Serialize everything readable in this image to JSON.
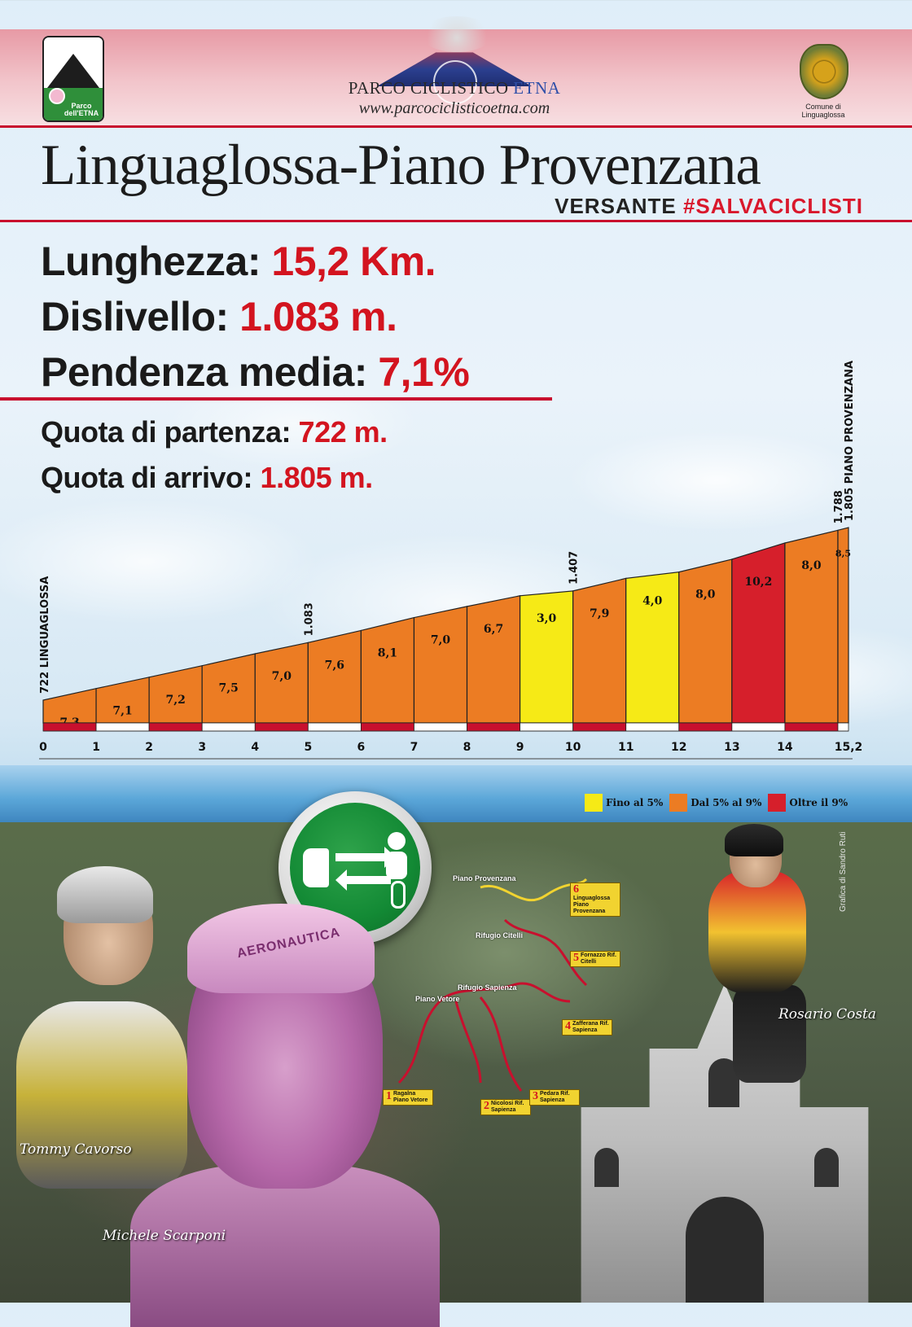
{
  "header": {
    "logo_left_text": "Parco dell'ETNA",
    "logo_center_name": "PARCO CICLISTICO",
    "logo_center_name_accent": "ETNA",
    "logo_center_url": "www.parcociclisticoetna.com",
    "logo_right_text": "Comune di Linguaglossa"
  },
  "title": "Linguaglossa-Piano Provenzana",
  "subtitle_prefix": "VERSANTE",
  "subtitle_tag": "#SALVACICLISTI",
  "stats": {
    "lunghezza_label": "Lunghezza:",
    "lunghezza_value": "15,2 Km.",
    "dislivello_label": "Dislivello:",
    "dislivello_value": "1.083 m.",
    "pendenza_label": "Pendenza media:",
    "pendenza_value": "7,1%",
    "partenza_label": "Quota di partenza:",
    "partenza_value": "722 m.",
    "arrivo_label": "Quota di arrivo:",
    "arrivo_value": "1.805 m."
  },
  "chart_data": {
    "type": "area",
    "title": "",
    "xlabel": "",
    "ylabel": "",
    "x_ticks": [
      "0",
      "1",
      "2",
      "3",
      "4",
      "5",
      "6",
      "7",
      "8",
      "9",
      "10",
      "11",
      "12",
      "13",
      "14",
      "15,2"
    ],
    "segments": [
      {
        "from": 0,
        "to": 1,
        "gradient": "7,3",
        "class": "5-9"
      },
      {
        "from": 1,
        "to": 2,
        "gradient": "7,1",
        "class": "5-9"
      },
      {
        "from": 2,
        "to": 3,
        "gradient": "7,2",
        "class": "5-9"
      },
      {
        "from": 3,
        "to": 4,
        "gradient": "7,5",
        "class": "5-9"
      },
      {
        "from": 4,
        "to": 5,
        "gradient": "7,0",
        "class": "5-9"
      },
      {
        "from": 5,
        "to": 6,
        "gradient": "7,6",
        "class": "5-9"
      },
      {
        "from": 6,
        "to": 7,
        "gradient": "8,1",
        "class": "5-9"
      },
      {
        "from": 7,
        "to": 8,
        "gradient": "7,0",
        "class": "5-9"
      },
      {
        "from": 8,
        "to": 9,
        "gradient": "6,7",
        "class": "5-9"
      },
      {
        "from": 9,
        "to": 10,
        "gradient": "3,0",
        "class": "lt5"
      },
      {
        "from": 10,
        "to": 11,
        "gradient": "7,9",
        "class": "5-9"
      },
      {
        "from": 11,
        "to": 12,
        "gradient": "4,0",
        "class": "lt5"
      },
      {
        "from": 12,
        "to": 13,
        "gradient": "8,0",
        "class": "5-9"
      },
      {
        "from": 13,
        "to": 14,
        "gradient": "10,2",
        "class": "gt9"
      },
      {
        "from": 14,
        "to": 15,
        "gradient": "8,0",
        "class": "5-9"
      },
      {
        "from": 15,
        "to": 15.2,
        "gradient": "8,5",
        "class": "5-9"
      }
    ],
    "elevation_km": [
      0,
      1,
      2,
      3,
      4,
      5,
      6,
      7,
      8,
      9,
      10,
      11,
      12,
      13,
      14,
      15,
      15.2
    ],
    "elevation_m": [
      722,
      795,
      866,
      938,
      1013,
      1083,
      1159,
      1240,
      1310,
      1377,
      1407,
      1486,
      1526,
      1606,
      1708,
      1788,
      1805
    ],
    "elevation_labels": [
      {
        "km": 0,
        "text": "722 LINGUAGLOSSA"
      },
      {
        "km": 5,
        "text": "1.083"
      },
      {
        "km": 10,
        "text": "1.407"
      },
      {
        "km": 15,
        "text": "1.788"
      },
      {
        "km": 15.2,
        "text": "1.805 PIANO PROVENZANA"
      }
    ],
    "colors": {
      "lt5": "#f6ea16",
      "5-9": "#ec7c23",
      "gt9": "#d61f2b"
    },
    "legend": [
      {
        "class": "lt5",
        "label": "Fino al 5%"
      },
      {
        "class": "5-9",
        "label": "Dal 5% al 9%"
      },
      {
        "class": "gt9",
        "label": "Oltre il 9%"
      }
    ],
    "legend_position": "bottom-right"
  },
  "map": {
    "labels": [
      "Piano Provenzana",
      "Rifugio Citelli",
      "Rifugio Sapienza",
      "Piano Vetore"
    ],
    "stages": [
      {
        "n": "1",
        "text": "Ragalna Piano Vetore"
      },
      {
        "n": "2",
        "text": "Nicolosi Rif. Sapienza"
      },
      {
        "n": "3",
        "text": "Pedara Rif. Sapienza"
      },
      {
        "n": "4",
        "text": "Zafferana Rif. Sapienza"
      },
      {
        "n": "5",
        "text": "Fornazzo Rif. Citelli"
      },
      {
        "n": "6",
        "text": "Linguaglossa Piano Provenzana"
      }
    ]
  },
  "captions": {
    "rider_left": "Tommy Cavorso",
    "rider_center": "Michele Scarponi",
    "rider_right": "Rosario Costa",
    "cap_text": "AERONAUTICA",
    "credit": "Grafica di Sandro Ruti"
  }
}
